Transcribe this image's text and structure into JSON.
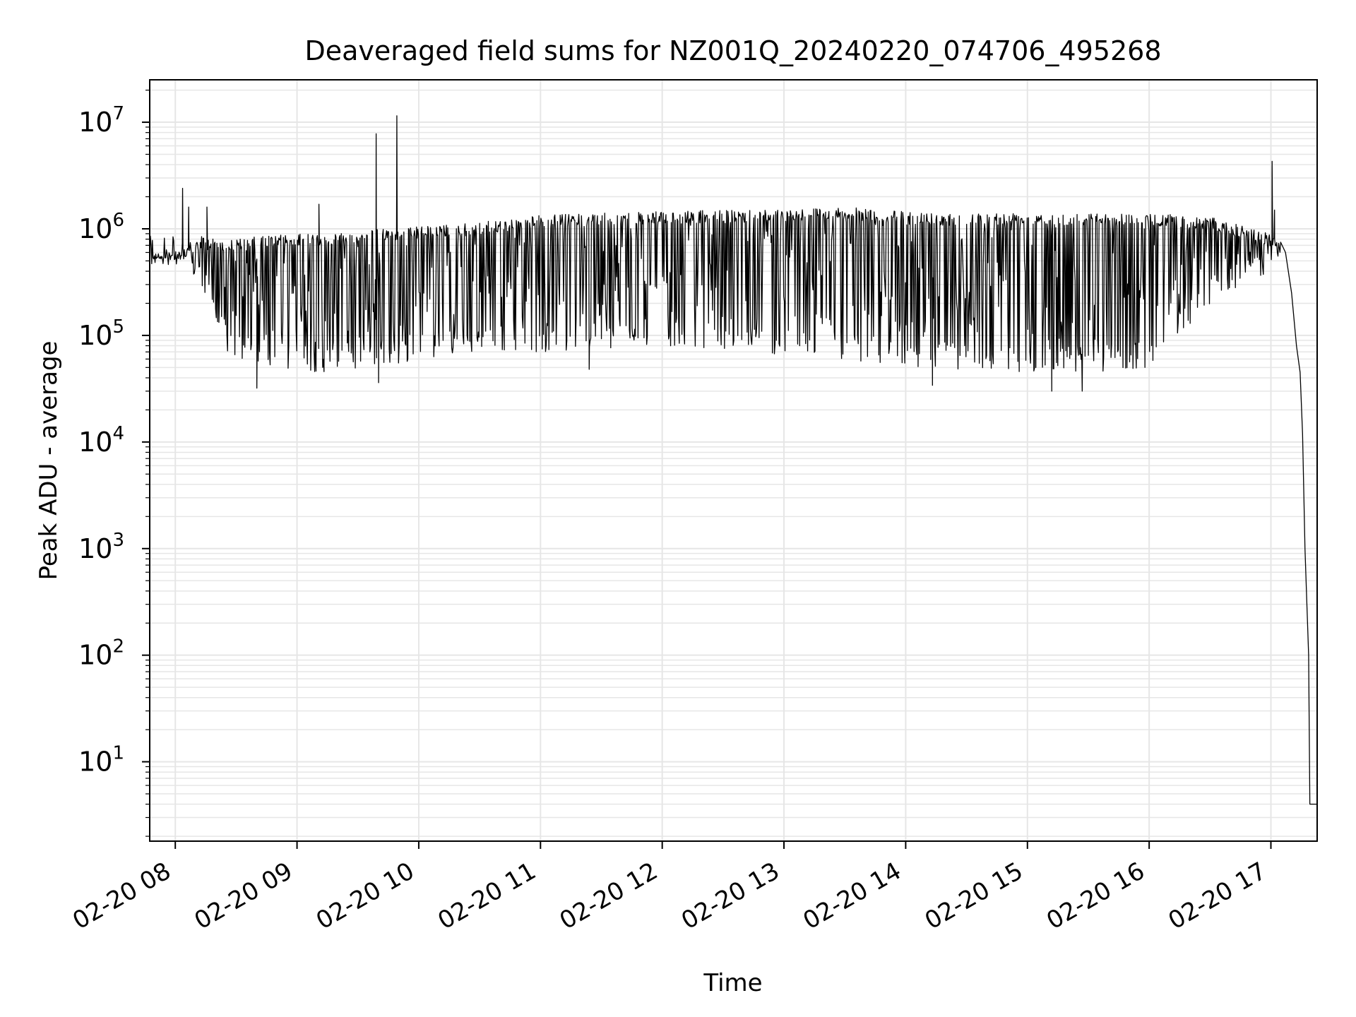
{
  "chart_data": {
    "type": "line",
    "title": "Deaveraged field sums for NZ001Q_20240220_074706_495268",
    "xlabel": "Time",
    "ylabel": "Peak ADU - average",
    "yscale": "log",
    "ylim": [
      1.8,
      25000000
    ],
    "xlim_hours": [
      7.79,
      17.38
    ],
    "grid": true,
    "line_color": "#000000",
    "grid_color": "#e6e6e6",
    "x_ticks": [
      {
        "hour": 8,
        "label": "02-20 08"
      },
      {
        "hour": 9,
        "label": "02-20 09"
      },
      {
        "hour": 10,
        "label": "02-20 10"
      },
      {
        "hour": 11,
        "label": "02-20 11"
      },
      {
        "hour": 12,
        "label": "02-20 12"
      },
      {
        "hour": 13,
        "label": "02-20 13"
      },
      {
        "hour": 14,
        "label": "02-20 14"
      },
      {
        "hour": 15,
        "label": "02-20 15"
      },
      {
        "hour": 16,
        "label": "02-20 16"
      },
      {
        "hour": 17,
        "label": "02-20 17"
      }
    ],
    "y_ticks": [
      {
        "exp": 1,
        "base": "10",
        "sup": "1"
      },
      {
        "exp": 2,
        "base": "10",
        "sup": "2"
      },
      {
        "exp": 3,
        "base": "10",
        "sup": "3"
      },
      {
        "exp": 4,
        "base": "10",
        "sup": "4"
      },
      {
        "exp": 5,
        "base": "10",
        "sup": "5"
      },
      {
        "exp": 6,
        "base": "10",
        "sup": "6"
      },
      {
        "exp": 7,
        "base": "10",
        "sup": "7"
      }
    ],
    "series": [
      {
        "upper_envelope": [
          [
            7.79,
            600000
          ],
          [
            8.0,
            600000
          ],
          [
            8.2,
            850000
          ],
          [
            8.5,
            800000
          ],
          [
            8.8,
            880000
          ],
          [
            9.2,
            900000
          ],
          [
            9.6,
            980000
          ],
          [
            10.0,
            1050000
          ],
          [
            10.5,
            1150000
          ],
          [
            11.0,
            1350000
          ],
          [
            11.5,
            1400000
          ],
          [
            12.0,
            1450000
          ],
          [
            12.5,
            1500000
          ],
          [
            13.0,
            1550000
          ],
          [
            13.5,
            1600000
          ],
          [
            14.0,
            1450000
          ],
          [
            14.5,
            1400000
          ],
          [
            15.0,
            1450000
          ],
          [
            15.5,
            1400000
          ],
          [
            16.0,
            1400000
          ],
          [
            16.5,
            1300000
          ],
          [
            17.0,
            900000
          ],
          [
            17.1,
            750000
          ]
        ],
        "lower_envelope": [
          [
            7.79,
            480000
          ],
          [
            8.0,
            520000
          ],
          [
            8.15,
            350000
          ],
          [
            8.3,
            150000
          ],
          [
            8.45,
            60000
          ],
          [
            8.8,
            50000
          ],
          [
            9.2,
            45000
          ],
          [
            9.6,
            45000
          ],
          [
            10.0,
            60000
          ],
          [
            10.5,
            70000
          ],
          [
            11.0,
            70000
          ],
          [
            11.5,
            75000
          ],
          [
            12.0,
            80000
          ],
          [
            12.5,
            75000
          ],
          [
            13.0,
            65000
          ],
          [
            13.5,
            60000
          ],
          [
            14.0,
            50000
          ],
          [
            14.5,
            48000
          ],
          [
            15.0,
            45000
          ],
          [
            15.5,
            45000
          ],
          [
            16.0,
            50000
          ],
          [
            16.5,
            200000
          ],
          [
            17.0,
            400000
          ],
          [
            17.1,
            600000
          ]
        ],
        "spikes": [
          [
            8.06,
            2400000
          ],
          [
            8.11,
            1600000
          ],
          [
            8.26,
            1600000
          ],
          [
            8.67,
            32000
          ],
          [
            9.18,
            1700000
          ],
          [
            9.65,
            7800000
          ],
          [
            9.67,
            36000
          ],
          [
            9.82,
            11500000
          ],
          [
            11.4,
            48000
          ],
          [
            14.22,
            34000
          ],
          [
            15.2,
            30000
          ],
          [
            15.45,
            30000
          ],
          [
            17.01,
            4300000
          ],
          [
            17.03,
            1500000
          ]
        ],
        "tail": [
          [
            17.08,
            750000
          ],
          [
            17.12,
            600000
          ],
          [
            17.17,
            250000
          ],
          [
            17.21,
            80000
          ],
          [
            17.24,
            45000
          ],
          [
            17.26,
            12000
          ],
          [
            17.28,
            1000
          ],
          [
            17.31,
            100
          ],
          [
            17.32,
            4
          ],
          [
            17.38,
            4
          ]
        ]
      }
    ]
  }
}
